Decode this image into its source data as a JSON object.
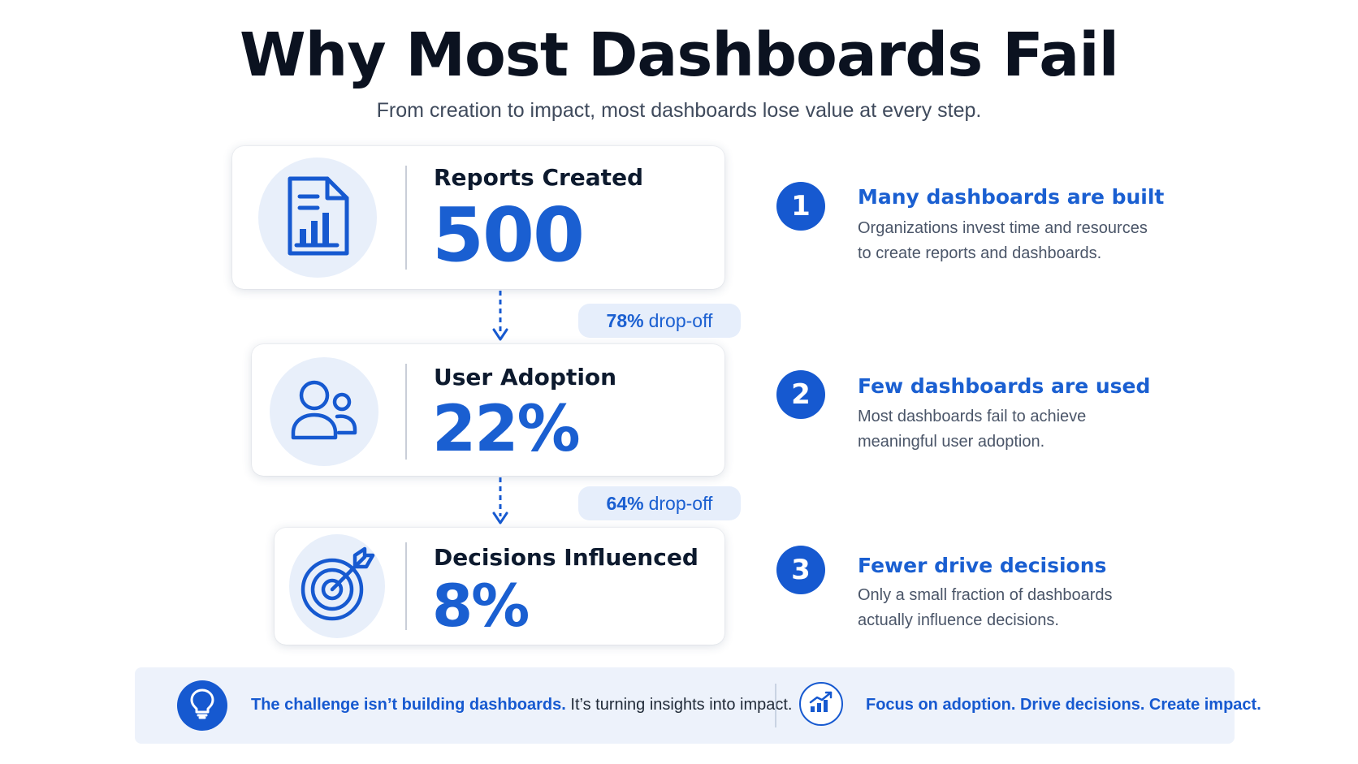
{
  "header": {
    "title": "Why Most Dashboards Fail",
    "subtitle": "From creation to impact, most dashboards lose value at every step."
  },
  "funnel": {
    "stages": [
      {
        "label": "Reports Created",
        "value": "500",
        "icon": "report-chart-icon"
      },
      {
        "label": "User Adoption",
        "value": "22%",
        "icon": "users-icon"
      },
      {
        "label": "Decisions Influenced",
        "value": "8%",
        "icon": "target-icon"
      }
    ],
    "dropoffs": [
      {
        "percent": "78%",
        "text": "drop-off"
      },
      {
        "percent": "64%",
        "text": "drop-off"
      }
    ]
  },
  "steps": [
    {
      "number": "1",
      "title": "Many dashboards are built",
      "line1": "Organizations invest time and resources",
      "line2": "to create reports and dashboards."
    },
    {
      "number": "2",
      "title": "Few dashboards are used",
      "line1": "Most dashboards fail to achieve",
      "line2": "meaningful user adoption."
    },
    {
      "number": "3",
      "title": "Fewer drive decisions",
      "line1": "Only a small fraction of dashboards",
      "line2": "actually influence decisions."
    }
  ],
  "banner": {
    "left_icon": "lightbulb-icon",
    "challenge_strong": "The challenge isn’t building dashboards.",
    "challenge_rest": "It’s turning insights into impact.",
    "right_icon": "growth-chart-icon",
    "tagline": "Focus on adoption. Drive decisions. Create impact."
  },
  "colors": {
    "accent": "#1659d0",
    "accent_light": "#e8effa",
    "text_dark": "#0d1a2e",
    "text_muted": "#4a5568"
  }
}
